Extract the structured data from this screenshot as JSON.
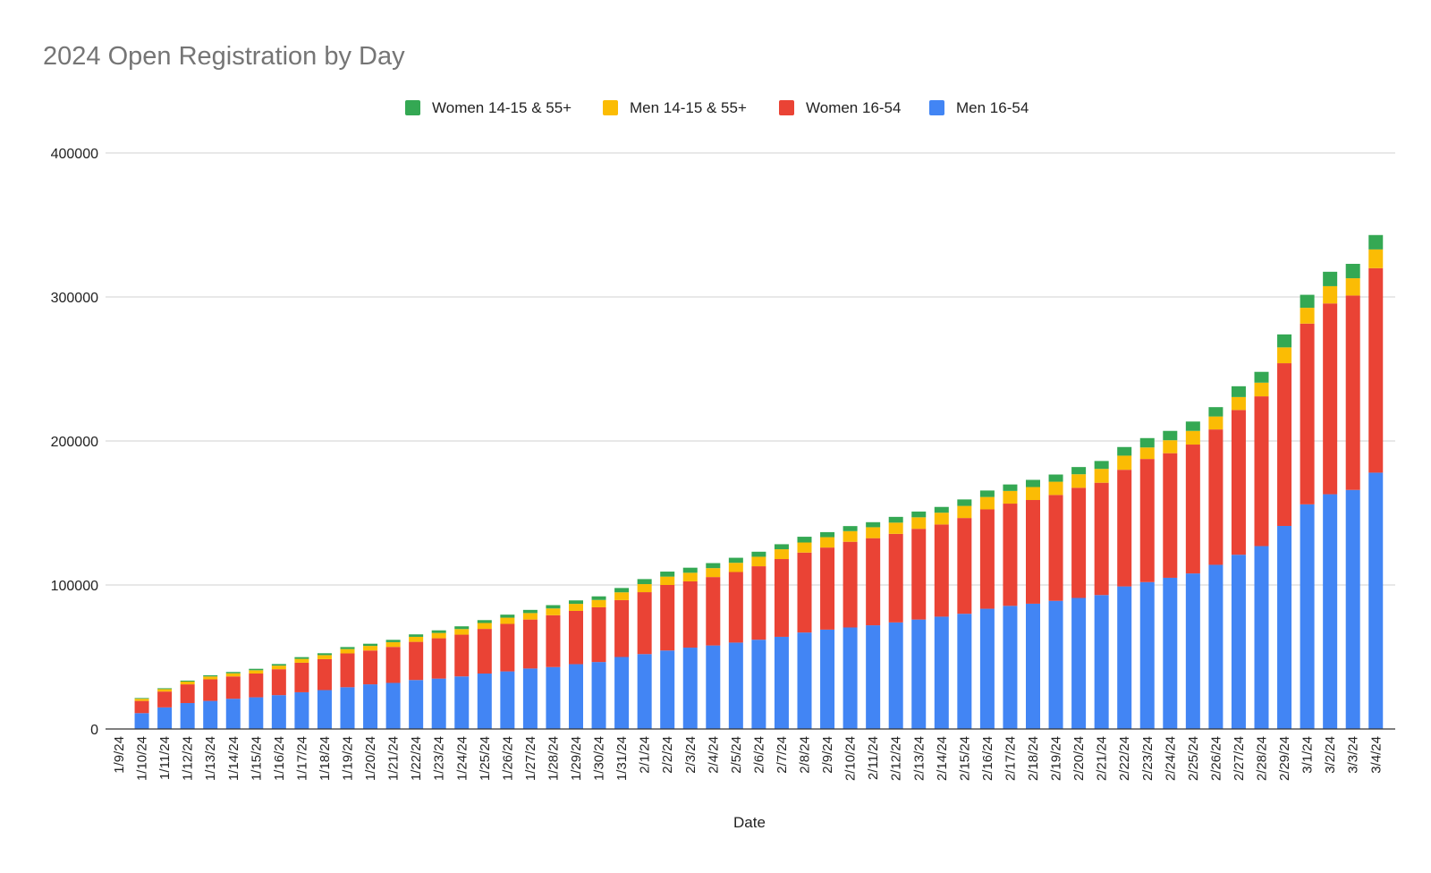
{
  "chart_data": {
    "type": "bar",
    "stacked": true,
    "title": "2024 Open Registration by Day",
    "xlabel": "Date",
    "ylabel": "",
    "ylim": [
      0,
      400000
    ],
    "yticks": [
      0,
      100000,
      200000,
      300000,
      400000
    ],
    "ytick_labels": [
      "0",
      "100000",
      "200000",
      "300000",
      "400000"
    ],
    "grid": true,
    "legend_position": "top-center",
    "categories": [
      "1/9/24",
      "1/10/24",
      "1/11/24",
      "1/12/24",
      "1/13/24",
      "1/14/24",
      "1/15/24",
      "1/16/24",
      "1/17/24",
      "1/18/24",
      "1/19/24",
      "1/20/24",
      "1/21/24",
      "1/22/24",
      "1/23/24",
      "1/24/24",
      "1/25/24",
      "1/26/24",
      "1/27/24",
      "1/28/24",
      "1/29/24",
      "1/30/24",
      "1/31/24",
      "2/1/24",
      "2/2/24",
      "2/3/24",
      "2/4/24",
      "2/5/24",
      "2/6/24",
      "2/7/24",
      "2/8/24",
      "2/9/24",
      "2/10/24",
      "2/11/24",
      "2/12/24",
      "2/13/24",
      "2/14/24",
      "2/15/24",
      "2/16/24",
      "2/17/24",
      "2/18/24",
      "2/19/24",
      "2/20/24",
      "2/21/24",
      "2/22/24",
      "2/23/24",
      "2/24/24",
      "2/25/24",
      "2/26/24",
      "2/27/24",
      "2/28/24",
      "2/29/24",
      "3/1/24",
      "3/2/24",
      "3/3/24",
      "3/4/24"
    ],
    "series": [
      {
        "name": "Men 16-54",
        "color": "#4285F4",
        "values": [
          0,
          11000,
          15000,
          18000,
          19500,
          21000,
          22000,
          23500,
          25500,
          27000,
          29000,
          31000,
          32000,
          34000,
          35000,
          36500,
          38500,
          40000,
          42000,
          43000,
          45000,
          46500,
          50000,
          52000,
          54500,
          56500,
          58000,
          60000,
          62000,
          64000,
          67000,
          69000,
          70500,
          72000,
          74000,
          76000,
          78000,
          80000,
          83500,
          85500,
          87000,
          89000,
          91000,
          93000,
          99000,
          102000,
          105000,
          108000,
          114000,
          121000,
          127000,
          141000,
          156000,
          163000,
          166000,
          178000
        ]
      },
      {
        "name": "Women 16-54",
        "color": "#EA4335",
        "values": [
          0,
          8500,
          11000,
          13000,
          15000,
          15500,
          16500,
          18000,
          20500,
          21500,
          23500,
          23500,
          25000,
          26500,
          28000,
          29000,
          31000,
          33000,
          34000,
          36000,
          37000,
          38000,
          39500,
          43000,
          45500,
          46000,
          47500,
          49000,
          51000,
          54000,
          55500,
          57000,
          59500,
          60500,
          61500,
          63000,
          64000,
          66500,
          69000,
          71000,
          72000,
          73500,
          76500,
          78000,
          81000,
          85500,
          86500,
          89500,
          94000,
          100500,
          104000,
          113000,
          125500,
          132500,
          135000,
          142000
        ]
      },
      {
        "name": "Men 14-15 & 55+",
        "color": "#FBBC04",
        "values": [
          0,
          1500,
          1700,
          1900,
          2000,
          2200,
          2300,
          2500,
          2700,
          2800,
          3000,
          3200,
          3300,
          3500,
          3700,
          3900,
          4100,
          4300,
          4500,
          4700,
          4900,
          5100,
          5400,
          5600,
          5800,
          6000,
          6200,
          6400,
          6600,
          6800,
          7000,
          7200,
          7400,
          7600,
          7800,
          8000,
          8200,
          8400,
          8600,
          8800,
          9000,
          9200,
          9400,
          9600,
          9800,
          8000,
          9000,
          9500,
          9000,
          9000,
          9500,
          11000,
          11000,
          12000,
          12000,
          13000
        ]
      },
      {
        "name": "Women 14-15 & 55+",
        "color": "#34A853",
        "values": [
          0,
          500,
          600,
          700,
          800,
          900,
          1000,
          1100,
          1200,
          1300,
          1400,
          1500,
          1600,
          1700,
          1800,
          1900,
          2000,
          2100,
          2200,
          2300,
          2400,
          2500,
          3000,
          3500,
          3500,
          3500,
          3500,
          3500,
          3500,
          3500,
          4000,
          3500,
          3500,
          3500,
          4000,
          4000,
          4000,
          4500,
          4500,
          4500,
          5000,
          5000,
          5000,
          5500,
          6000,
          6500,
          6500,
          6500,
          6500,
          7500,
          7500,
          9000,
          9000,
          10000,
          10000,
          10000
        ]
      }
    ]
  }
}
